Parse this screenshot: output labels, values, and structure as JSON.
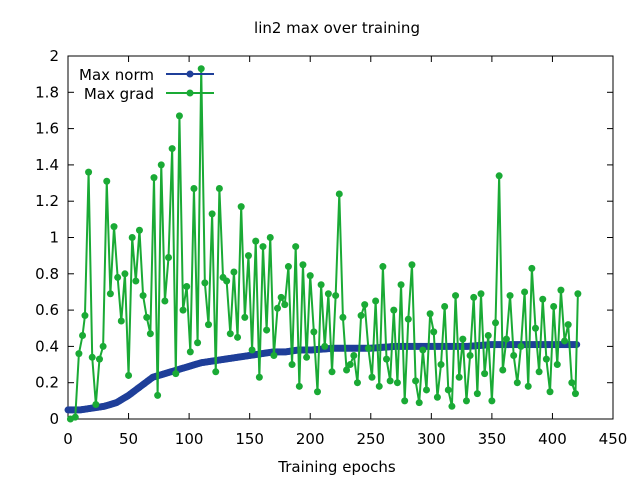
{
  "chart_data": {
    "type": "line",
    "title": "lin2 max over training",
    "xlabel": "Training epochs",
    "ylabel": "",
    "xlim": [
      0,
      450
    ],
    "ylim": [
      0,
      2
    ],
    "xticks": [
      "0",
      "50",
      "100",
      "150",
      "200",
      "250",
      "300",
      "350",
      "400",
      "450"
    ],
    "yticks": [
      "0",
      "0.2",
      "0.4",
      "0.6",
      "0.8",
      "1",
      "1.2",
      "1.4",
      "1.6",
      "1.8",
      "2"
    ],
    "grid": false,
    "legend_position": "top-left",
    "series": [
      {
        "name": "Max norm",
        "color": "#1f3f99",
        "x": [
          0,
          10,
          20,
          30,
          40,
          50,
          60,
          70,
          80,
          90,
          100,
          110,
          120,
          130,
          140,
          150,
          160,
          170,
          180,
          190,
          200,
          220,
          250,
          270,
          300,
          330,
          350,
          380,
          400,
          420
        ],
        "y": [
          0.05,
          0.05,
          0.06,
          0.07,
          0.09,
          0.13,
          0.18,
          0.23,
          0.25,
          0.27,
          0.29,
          0.31,
          0.32,
          0.33,
          0.34,
          0.35,
          0.36,
          0.37,
          0.37,
          0.38,
          0.38,
          0.39,
          0.39,
          0.4,
          0.4,
          0.4,
          0.41,
          0.41,
          0.41,
          0.41
        ]
      },
      {
        "name": "Max grad",
        "color": "#1aaa35",
        "x": [
          2,
          6,
          9,
          12,
          14,
          17,
          20,
          23,
          26,
          29,
          32,
          35,
          38,
          41,
          44,
          47,
          50,
          53,
          56,
          59,
          62,
          65,
          68,
          71,
          74,
          77,
          80,
          83,
          86,
          89,
          92,
          95,
          98,
          101,
          104,
          107,
          110,
          113,
          116,
          119,
          122,
          125,
          128,
          131,
          134,
          137,
          140,
          143,
          146,
          149,
          152,
          155,
          158,
          161,
          164,
          167,
          170,
          173,
          176,
          179,
          182,
          185,
          188,
          191,
          194,
          197,
          200,
          203,
          206,
          209,
          212,
          215,
          218,
          221,
          224,
          227,
          230,
          233,
          236,
          239,
          242,
          245,
          248,
          251,
          254,
          257,
          260,
          263,
          266,
          269,
          272,
          275,
          278,
          281,
          284,
          287,
          290,
          293,
          296,
          299,
          302,
          305,
          308,
          311,
          314,
          317,
          320,
          323,
          326,
          329,
          332,
          335,
          338,
          341,
          344,
          347,
          350,
          353,
          356,
          359,
          362,
          365,
          368,
          371,
          374,
          377,
          380,
          383,
          386,
          389,
          392,
          395,
          398,
          401,
          404,
          407,
          410,
          413,
          416,
          419,
          421
        ],
        "y": [
          0.0,
          0.01,
          0.36,
          0.46,
          0.57,
          1.36,
          0.34,
          0.08,
          0.33,
          0.4,
          1.31,
          0.69,
          1.06,
          0.78,
          0.54,
          0.8,
          0.24,
          1.0,
          0.76,
          1.04,
          0.68,
          0.56,
          0.47,
          1.33,
          0.13,
          1.4,
          0.65,
          0.89,
          1.49,
          0.25,
          1.67,
          0.6,
          0.73,
          0.37,
          1.27,
          0.42,
          1.93,
          0.75,
          0.52,
          1.13,
          0.26,
          1.27,
          0.78,
          0.76,
          0.47,
          0.81,
          0.45,
          1.17,
          0.56,
          0.9,
          0.38,
          0.98,
          0.23,
          0.95,
          0.49,
          1.0,
          0.35,
          0.61,
          0.67,
          0.63,
          0.84,
          0.3,
          0.95,
          0.18,
          0.85,
          0.34,
          0.79,
          0.48,
          0.15,
          0.74,
          0.4,
          0.69,
          0.26,
          0.68,
          1.24,
          0.56,
          0.27,
          0.3,
          0.35,
          0.2,
          0.57,
          0.63,
          0.39,
          0.23,
          0.65,
          0.18,
          0.84,
          0.33,
          0.21,
          0.6,
          0.2,
          0.74,
          0.1,
          0.55,
          0.85,
          0.21,
          0.09,
          0.38,
          0.16,
          0.58,
          0.48,
          0.12,
          0.3,
          0.62,
          0.16,
          0.07,
          0.68,
          0.23,
          0.44,
          0.1,
          0.35,
          0.67,
          0.14,
          0.69,
          0.25,
          0.46,
          0.1,
          0.53,
          1.34,
          0.27,
          0.44,
          0.68,
          0.35,
          0.2,
          0.4,
          0.7,
          0.18,
          0.83,
          0.5,
          0.26,
          0.66,
          0.33,
          0.15,
          0.62,
          0.3,
          0.71,
          0.43,
          0.52,
          0.2,
          0.14,
          0.69
        ]
      }
    ]
  }
}
